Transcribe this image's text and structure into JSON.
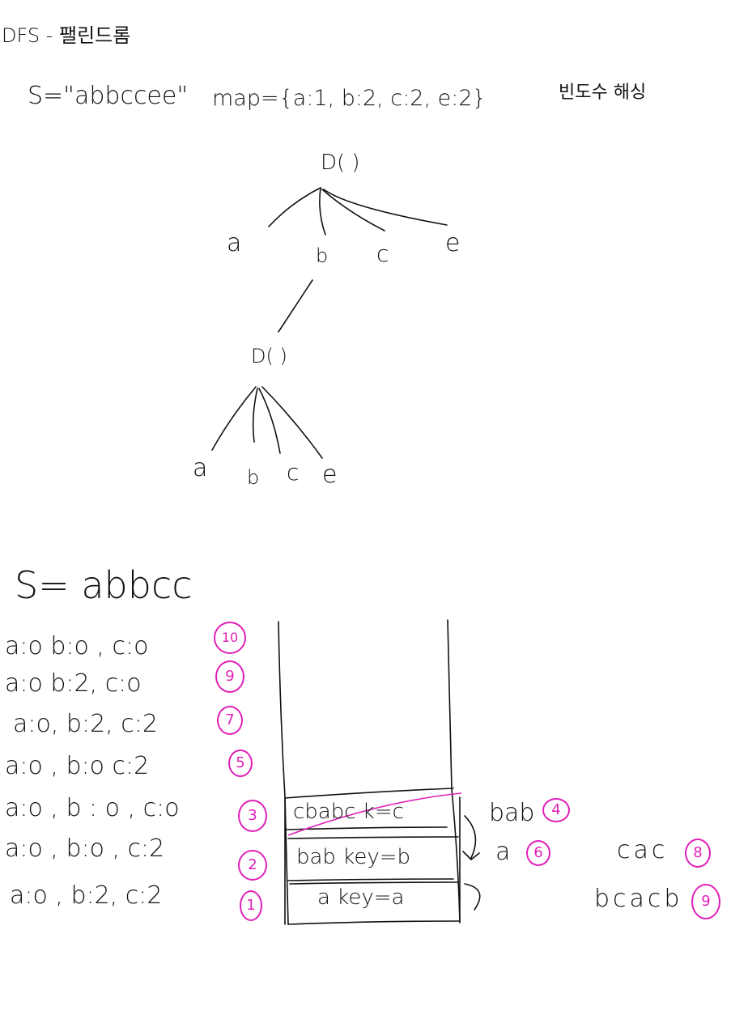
{
  "title": "DFS - 팰린드롬",
  "header": {
    "s_label": "S=\"abbccee\"",
    "map_label": "map={a:1, b:2, c:2, e:2}",
    "hash_label": "빈도수 해싱"
  },
  "tree": {
    "root": "D( )",
    "level1": [
      "a",
      "b",
      "c",
      "e"
    ],
    "child": "D( )",
    "level2": [
      "a",
      "b",
      "c",
      "e"
    ]
  },
  "section2": {
    "s_label": "S= abbcc",
    "states": [
      {
        "text": "a:o b:o , c:o",
        "step": "10"
      },
      {
        "text": "a:o b:2, c:o",
        "step": "9"
      },
      {
        "text": "a:o, b:2, c:2",
        "step": "7"
      },
      {
        "text": "a:o , b:o   c:2",
        "step": "5"
      },
      {
        "text": "a:o , b : o , c:o",
        "step": "3"
      },
      {
        "text": "a:o , b:o , c:2",
        "step": "2"
      },
      {
        "text": "a:o , b:2, c:2",
        "step": "1"
      }
    ],
    "stack": [
      {
        "content": "cbabc k=c",
        "crossed": true
      },
      {
        "content": "bab  key=b",
        "crossed": false
      },
      {
        "content": "a   key=a",
        "crossed": false
      }
    ],
    "side_notes": [
      {
        "text": "bab",
        "step": "4"
      },
      {
        "text": "a",
        "step": "6"
      },
      {
        "text": "cac",
        "step": "8"
      },
      {
        "text": "bcacb",
        "step": "9"
      }
    ]
  },
  "colors": {
    "ink": "#111111",
    "accent": "#e020b8"
  }
}
